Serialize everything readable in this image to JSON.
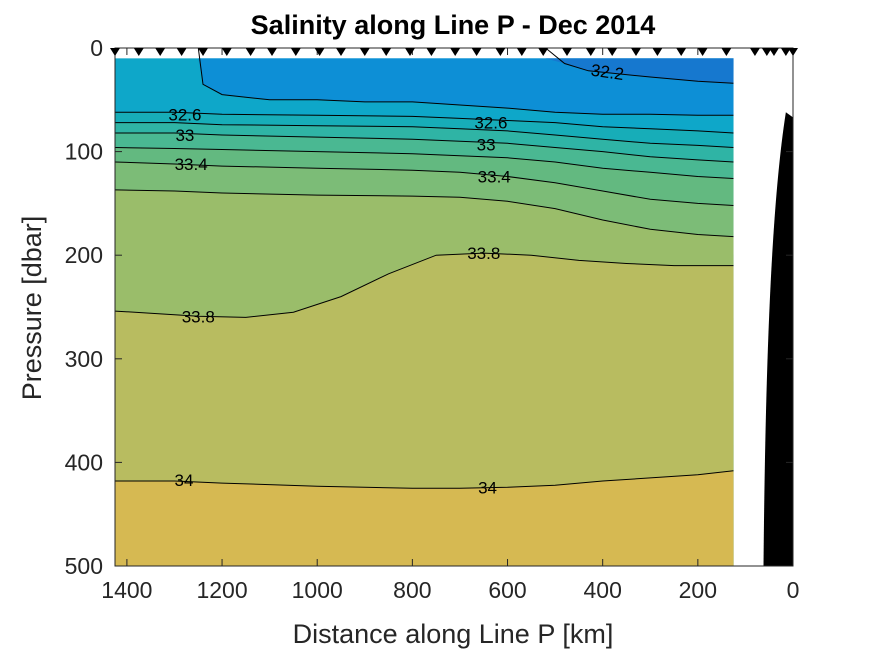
{
  "chart_data": {
    "type": "contour",
    "title": "Salinity along Line P - Dec 2014",
    "xlabel": "Distance along Line P [km]",
    "ylabel": "Pressure [dbar]",
    "xlim": [
      1425,
      0
    ],
    "ylim": [
      0,
      500
    ],
    "x_reversed": true,
    "y_reversed": true,
    "xticks": [
      1400,
      1200,
      1000,
      800,
      600,
      400,
      200,
      0
    ],
    "yticks": [
      0,
      100,
      200,
      300,
      400,
      500
    ],
    "data_x_extent": [
      1425,
      125
    ],
    "data_p_extent": [
      10,
      500
    ],
    "colors": {
      "level_lt_32_2": "#1678cf",
      "level_32_2": "#0d8fd6",
      "level_32_4": "#0ea7c9",
      "level_32_6": "#17adb8",
      "level_32_8": "#2fb4a5",
      "level_33_0": "#4ab892",
      "level_33_2": "#63b980",
      "level_33_4": "#7cbc77",
      "level_33_6": "#9abd6a",
      "level_33_8": "#b8bc60",
      "level_34_0": "#d6b952",
      "bathymetry": "#000000"
    },
    "contours": [
      {
        "level": "32.2",
        "label": "32.2",
        "labeled": true,
        "points": [
          [
            520,
            0
          ],
          [
            480,
            15
          ],
          [
            430,
            22
          ],
          [
            300,
            28
          ],
          [
            200,
            32
          ],
          [
            125,
            34
          ]
        ]
      },
      {
        "level": "32.4",
        "label": "",
        "labeled": false,
        "points": [
          [
            1250,
            0
          ],
          [
            1240,
            35
          ],
          [
            1200,
            45
          ],
          [
            1100,
            50
          ],
          [
            1000,
            50
          ],
          [
            900,
            52
          ],
          [
            800,
            52
          ],
          [
            700,
            55
          ],
          [
            600,
            58
          ],
          [
            500,
            62
          ],
          [
            400,
            64
          ],
          [
            300,
            64
          ],
          [
            200,
            65
          ],
          [
            125,
            65
          ]
        ]
      },
      {
        "level": "32.6",
        "label": "32.6",
        "labeled": true,
        "points": [
          [
            1425,
            62
          ],
          [
            1300,
            62
          ],
          [
            1200,
            64
          ],
          [
            1000,
            65
          ],
          [
            800,
            66
          ],
          [
            700,
            68
          ],
          [
            600,
            70
          ],
          [
            500,
            72
          ],
          [
            400,
            76
          ],
          [
            300,
            78
          ],
          [
            200,
            80
          ],
          [
            125,
            82
          ]
        ]
      },
      {
        "level": "32.8",
        "label": "",
        "labeled": false,
        "points": [
          [
            1425,
            72
          ],
          [
            1300,
            72
          ],
          [
            1200,
            74
          ],
          [
            1000,
            75
          ],
          [
            800,
            76
          ],
          [
            700,
            78
          ],
          [
            600,
            80
          ],
          [
            500,
            84
          ],
          [
            400,
            88
          ],
          [
            300,
            92
          ],
          [
            200,
            94
          ],
          [
            125,
            96
          ]
        ]
      },
      {
        "level": "33",
        "label": "33",
        "labeled": true,
        "points": [
          [
            1425,
            82
          ],
          [
            1300,
            82
          ],
          [
            1200,
            84
          ],
          [
            1000,
            86
          ],
          [
            800,
            88
          ],
          [
            700,
            90
          ],
          [
            600,
            92
          ],
          [
            500,
            96
          ],
          [
            400,
            100
          ],
          [
            300,
            105
          ],
          [
            200,
            108
          ],
          [
            125,
            110
          ]
        ]
      },
      {
        "level": "33.2",
        "label": "",
        "labeled": false,
        "points": [
          [
            1425,
            96
          ],
          [
            1300,
            97
          ],
          [
            1200,
            98
          ],
          [
            1000,
            100
          ],
          [
            800,
            102
          ],
          [
            700,
            104
          ],
          [
            600,
            106
          ],
          [
            500,
            110
          ],
          [
            400,
            116
          ],
          [
            300,
            120
          ],
          [
            200,
            124
          ],
          [
            125,
            126
          ]
        ]
      },
      {
        "level": "33.4",
        "label": "33.4",
        "labeled": true,
        "points": [
          [
            1425,
            110
          ],
          [
            1300,
            112
          ],
          [
            1200,
            114
          ],
          [
            1000,
            116
          ],
          [
            800,
            118
          ],
          [
            700,
            120
          ],
          [
            600,
            124
          ],
          [
            500,
            130
          ],
          [
            400,
            138
          ],
          [
            300,
            146
          ],
          [
            200,
            150
          ],
          [
            125,
            152
          ]
        ]
      },
      {
        "level": "33.6",
        "label": "",
        "labeled": false,
        "points": [
          [
            1425,
            137
          ],
          [
            1300,
            138
          ],
          [
            1200,
            140
          ],
          [
            1000,
            142
          ],
          [
            800,
            143
          ],
          [
            700,
            144
          ],
          [
            600,
            148
          ],
          [
            500,
            155
          ],
          [
            400,
            166
          ],
          [
            300,
            175
          ],
          [
            200,
            180
          ],
          [
            125,
            182
          ]
        ]
      },
      {
        "level": "33.8",
        "label": "33.8",
        "labeled": true,
        "points": [
          [
            1425,
            254
          ],
          [
            1350,
            256
          ],
          [
            1250,
            259
          ],
          [
            1150,
            260
          ],
          [
            1050,
            255
          ],
          [
            950,
            240
          ],
          [
            850,
            218
          ],
          [
            750,
            200
          ],
          [
            650,
            198
          ],
          [
            550,
            200
          ],
          [
            450,
            205
          ],
          [
            350,
            208
          ],
          [
            250,
            210
          ],
          [
            125,
            210
          ]
        ]
      },
      {
        "level": "34",
        "label": "34",
        "labeled": true,
        "points": [
          [
            1425,
            418
          ],
          [
            1300,
            418
          ],
          [
            1200,
            420
          ],
          [
            1000,
            423
          ],
          [
            800,
            425
          ],
          [
            700,
            425
          ],
          [
            600,
            424
          ],
          [
            500,
            422
          ],
          [
            400,
            418
          ],
          [
            300,
            415
          ],
          [
            200,
            412
          ],
          [
            125,
            408
          ]
        ]
      }
    ],
    "contour_labels": [
      {
        "text": "32.2",
        "x": 390,
        "p": 23
      },
      {
        "text": "32.6",
        "x": 1278,
        "p": 64
      },
      {
        "text": "32.6",
        "x": 635,
        "p": 72
      },
      {
        "text": "33",
        "x": 1278,
        "p": 84
      },
      {
        "text": "33",
        "x": 645,
        "p": 93
      },
      {
        "text": "33.4",
        "x": 1265,
        "p": 112
      },
      {
        "text": "33.4",
        "x": 628,
        "p": 124
      },
      {
        "text": "33.8",
        "x": 650,
        "p": 198
      },
      {
        "text": "33.8",
        "x": 1250,
        "p": 259
      },
      {
        "text": "34",
        "x": 1280,
        "p": 417
      },
      {
        "text": "34",
        "x": 642,
        "p": 424
      }
    ],
    "stations_km": [
      1425,
      1375,
      1330,
      1285,
      1240,
      1190,
      1140,
      1095,
      1045,
      995,
      950,
      900,
      855,
      805,
      760,
      710,
      665,
      615,
      570,
      525,
      475,
      425,
      380,
      330,
      285,
      235,
      190,
      140,
      80,
      55,
      40,
      15,
      0
    ],
    "bathymetry": {
      "p_top": 62,
      "x_range": [
        62,
        0
      ]
    }
  }
}
